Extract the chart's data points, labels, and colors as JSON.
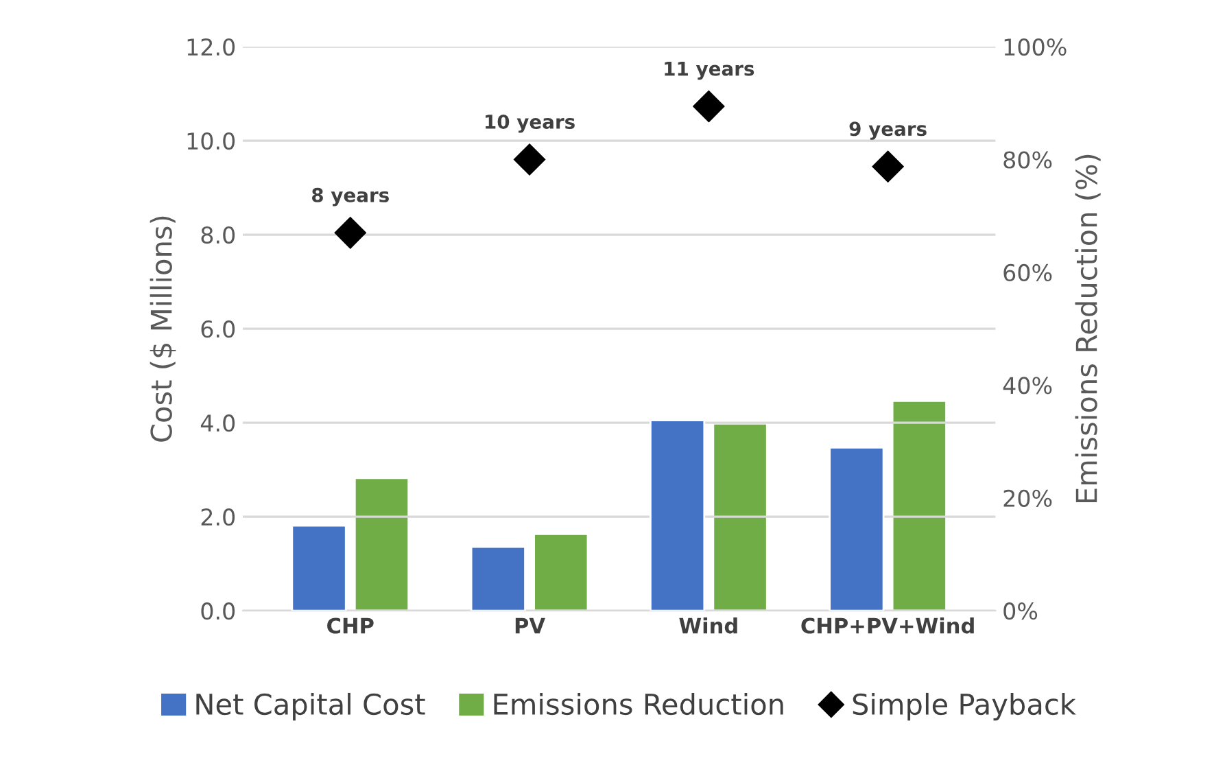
{
  "chart_data": {
    "type": "bar",
    "ylabel": "Cost ($ Millions)",
    "y2label": "Emissions Reduction (%)",
    "categories": [
      "CHP",
      "PV",
      "Wind",
      "CHP+PV+Wind"
    ],
    "series": [
      {
        "name": "Net Capital Cost",
        "color": "#4472c4",
        "values": [
          1.81,
          1.36,
          4.05,
          3.47
        ]
      },
      {
        "name": "Emissions Reduction",
        "color": "#70ad47",
        "axis": "y2",
        "values": [
          23.5,
          13.6,
          33.2,
          37.2
        ]
      },
      {
        "name": "Simple Payback",
        "type": "scatter",
        "marker": "diamond",
        "color": "#000000",
        "values": [
          8.04,
          9.6,
          10.73,
          9.45
        ],
        "value_labels": [
          "8 years",
          "10 years",
          "11 years",
          "9 years"
        ]
      }
    ],
    "ylim": [
      0,
      12
    ],
    "yticks": [
      {
        "value": 0,
        "label": "0.0"
      },
      {
        "value": 2,
        "label": "2.0"
      },
      {
        "value": 4,
        "label": "4.0"
      },
      {
        "value": 6,
        "label": "6.0"
      },
      {
        "value": 8,
        "label": "8.0"
      },
      {
        "value": 10,
        "label": "10.0"
      },
      {
        "value": 12,
        "label": "12.0"
      }
    ],
    "y2lim": [
      0,
      100
    ],
    "y2ticks": [
      {
        "value": 0,
        "label": "0%"
      },
      {
        "value": 20,
        "label": "20%"
      },
      {
        "value": 40,
        "label": "40%"
      },
      {
        "value": 60,
        "label": "60%"
      },
      {
        "value": 80,
        "label": "80%"
      },
      {
        "value": 100,
        "label": "100%"
      }
    ],
    "grid": "y",
    "legend": "bottom"
  }
}
